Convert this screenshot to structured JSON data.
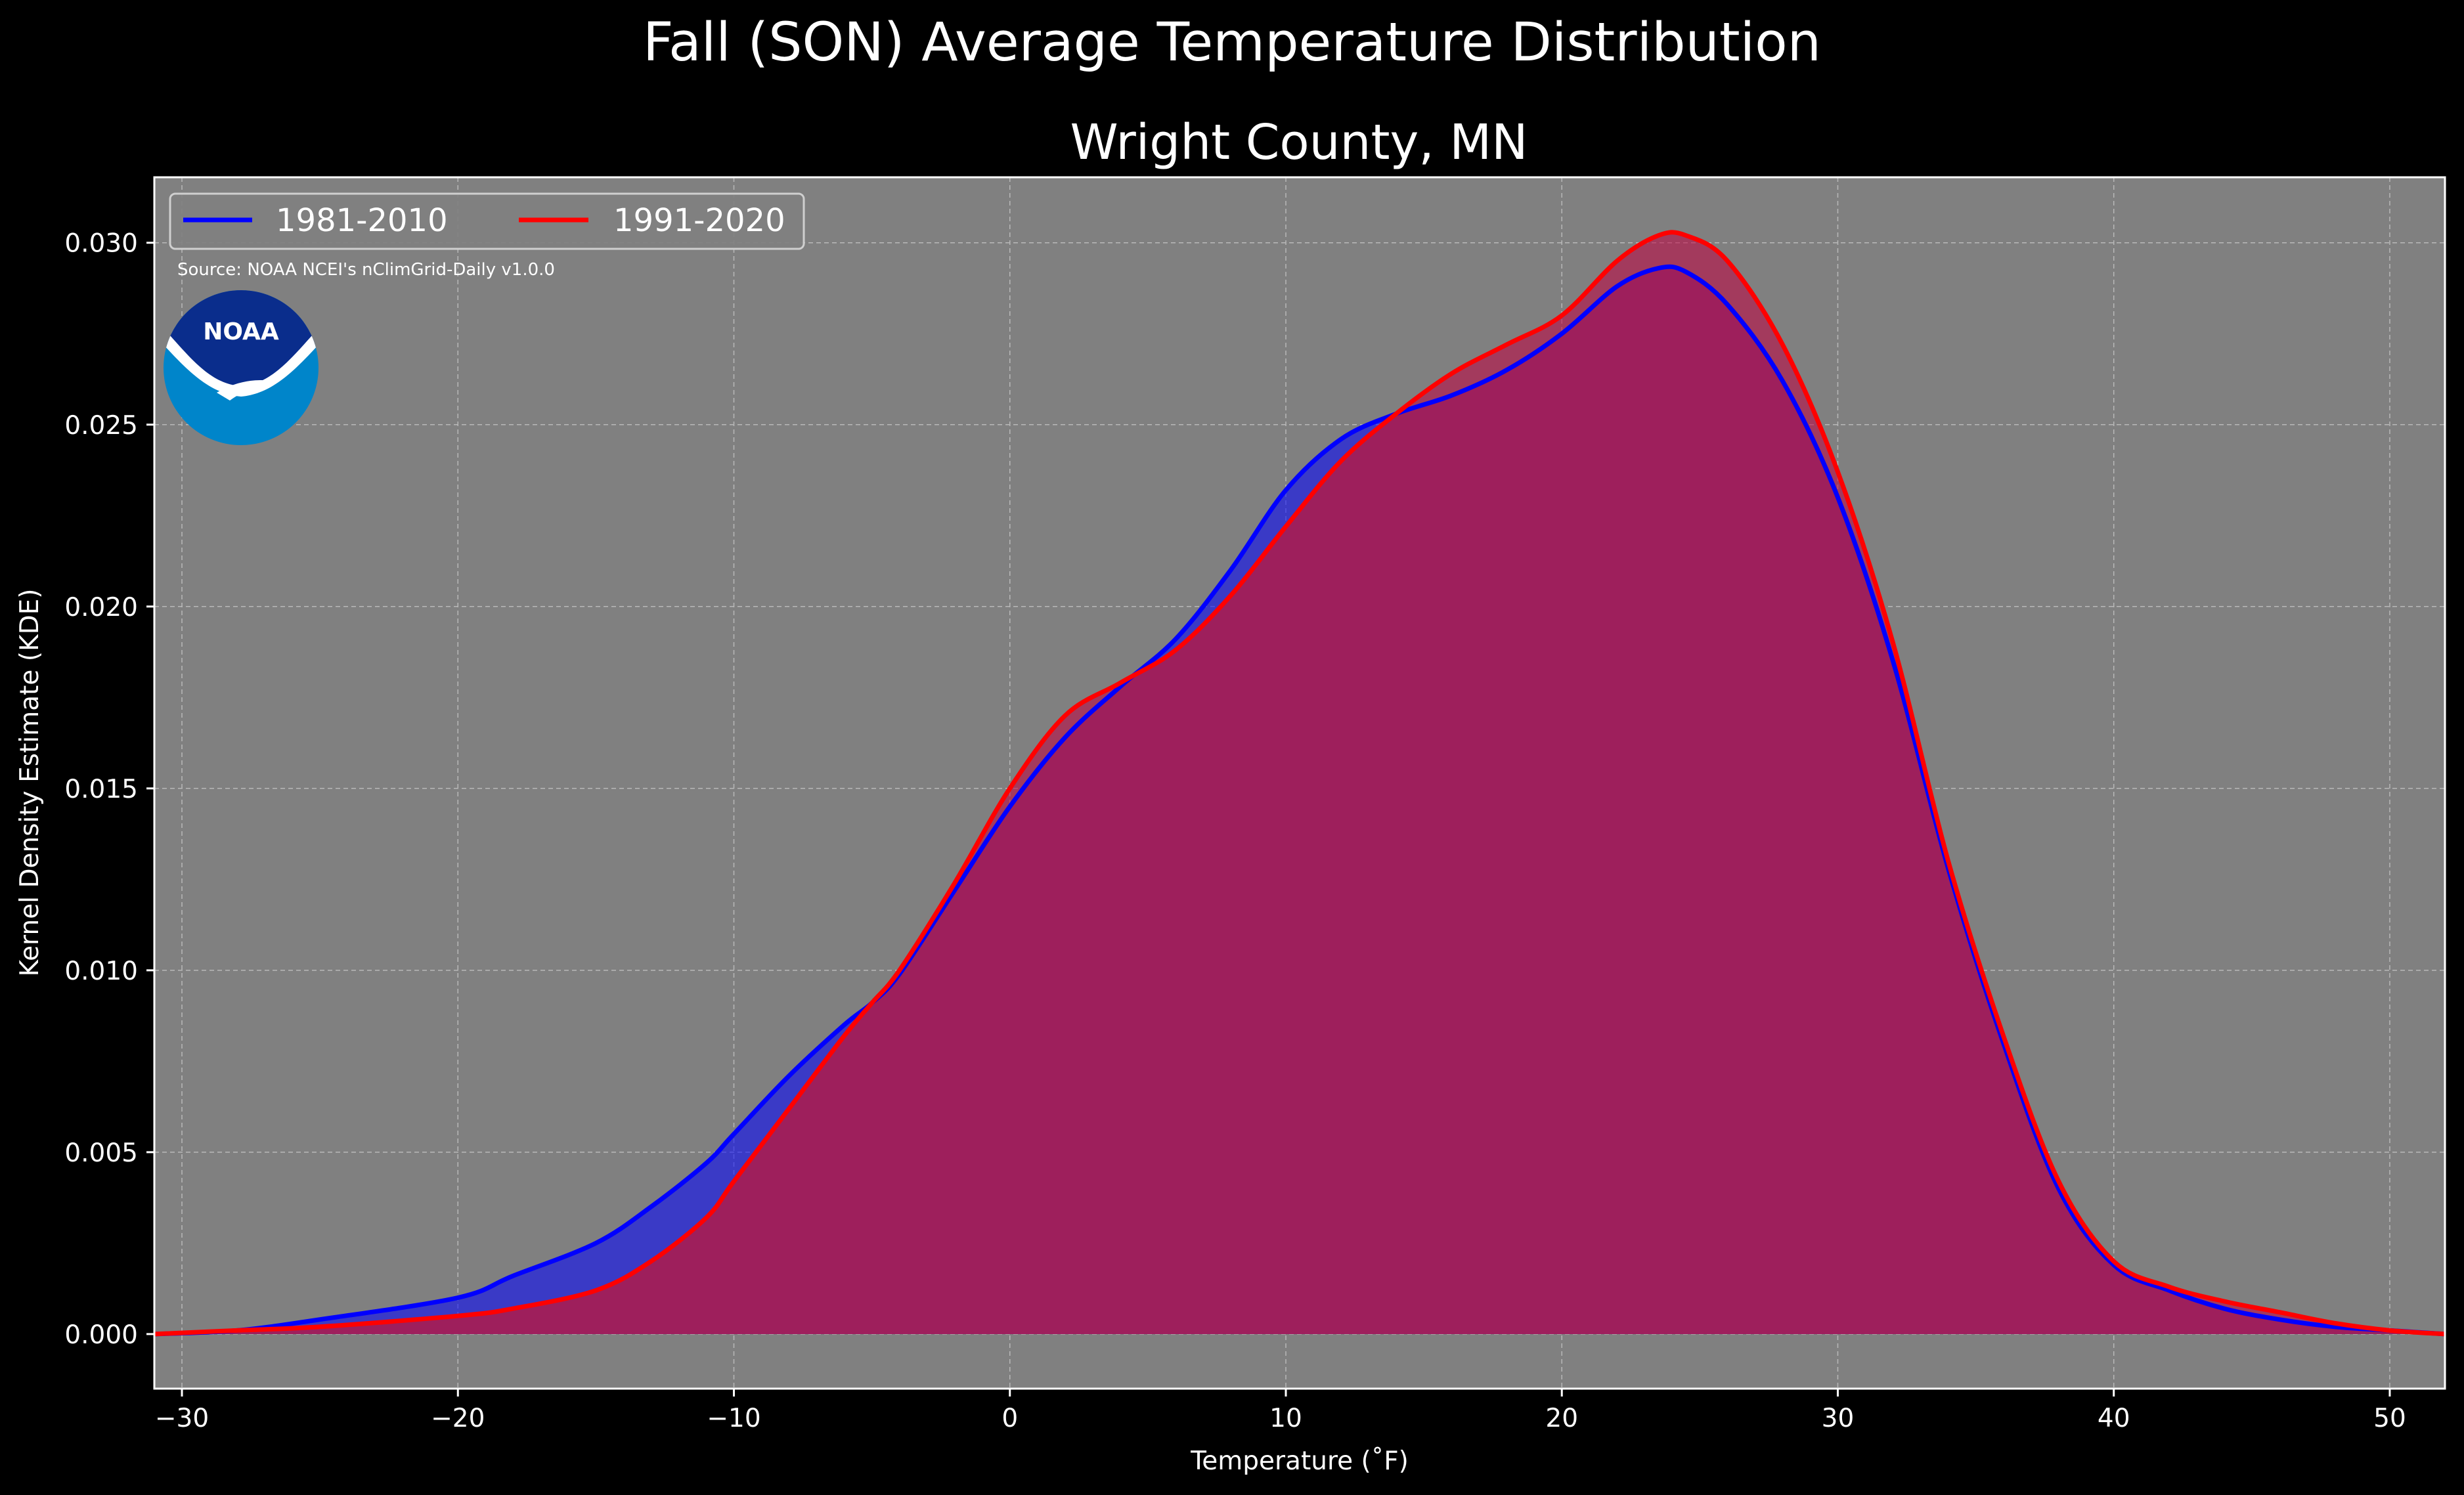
{
  "figure": {
    "suptitle": "Fall (SON) Average Temperature Distribution",
    "source_note": "Source: NOAA NCEI's nClimGrid-Daily v1.0.0",
    "logo_text": "NOAA"
  },
  "colors": {
    "figure_bg": "#000000",
    "plot_bg": "#808080",
    "grid": "#b8b8b8",
    "series_1981_2010_line": "#0000ff",
    "series_1981_2010_fill": "#0000ff",
    "series_1991_2020_line": "#ff0000",
    "series_1991_2020_fill": "#c00040",
    "overlap_fill": "#9e1f5c",
    "noaa_dark_blue": "#0a2d8c",
    "noaa_light_blue": "#0085ca"
  },
  "chart_data": {
    "type": "area",
    "title": "Wright County, MN",
    "xlabel": "Temperature ($^\\circ$F)",
    "xlabel_display": "Temperature (˚F)",
    "ylabel": "Kernel Density Estimate (KDE)",
    "xlim": [
      -31,
      52
    ],
    "ylim": [
      -0.0015,
      0.0318
    ],
    "xticks": [
      -30,
      -20,
      -10,
      0,
      10,
      20,
      30,
      40,
      50
    ],
    "xtick_labels": [
      "−30",
      "−20",
      "−10",
      "0",
      "10",
      "20",
      "30",
      "40",
      "50"
    ],
    "yticks": [
      0.0,
      0.005,
      0.01,
      0.015,
      0.02,
      0.025,
      0.03
    ],
    "ytick_labels": [
      "0.000",
      "0.005",
      "0.010",
      "0.015",
      "0.020",
      "0.025",
      "0.030"
    ],
    "grid": true,
    "legend": {
      "placement": "top-left",
      "ncol": 2
    },
    "x": [
      -31,
      -28,
      -25,
      -20,
      -18,
      -15,
      -13,
      -11,
      -10,
      -8,
      -6,
      -5,
      -4,
      -2,
      0,
      2,
      4,
      6,
      8,
      10,
      12,
      14,
      16,
      18,
      20,
      22,
      23.5,
      24.5,
      26,
      28,
      30,
      32,
      34,
      36,
      38,
      40,
      42,
      44,
      46,
      48,
      50,
      52
    ],
    "series": [
      {
        "name": "1981-2010",
        "values": [
          0.0,
          0.0001,
          0.0004,
          0.001,
          0.0016,
          0.0025,
          0.0035,
          0.0047,
          0.0055,
          0.0071,
          0.0085,
          0.0091,
          0.0099,
          0.0122,
          0.0145,
          0.0164,
          0.0178,
          0.0191,
          0.021,
          0.0232,
          0.0246,
          0.0253,
          0.0258,
          0.0265,
          0.0275,
          0.0288,
          0.0293,
          0.0292,
          0.0283,
          0.0262,
          0.023,
          0.0185,
          0.0128,
          0.008,
          0.004,
          0.0019,
          0.0012,
          0.0007,
          0.0004,
          0.0002,
          0.0001,
          0.0
        ]
      },
      {
        "name": "1991-2020",
        "values": [
          0.0,
          0.0001,
          0.0002,
          0.0005,
          0.0007,
          0.0012,
          0.002,
          0.0032,
          0.0042,
          0.0062,
          0.0082,
          0.0091,
          0.01,
          0.0124,
          0.015,
          0.017,
          0.0179,
          0.0188,
          0.0203,
          0.0222,
          0.024,
          0.0253,
          0.0264,
          0.0272,
          0.028,
          0.0295,
          0.0302,
          0.0302,
          0.0295,
          0.0272,
          0.0237,
          0.019,
          0.013,
          0.0082,
          0.0042,
          0.002,
          0.0013,
          0.0009,
          0.0006,
          0.0003,
          0.0001,
          0.0
        ]
      }
    ]
  }
}
